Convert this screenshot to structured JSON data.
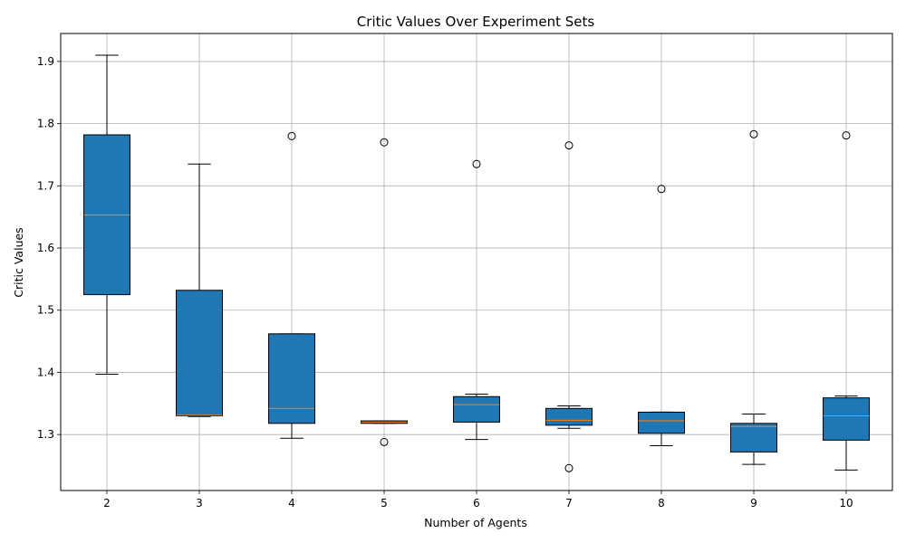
{
  "chart_data": {
    "type": "boxplot",
    "title": "Critic Values Over Experiment Sets",
    "xlabel": "Number of Agents",
    "ylabel": "Critic Values",
    "ylim": [
      1.21,
      1.945
    ],
    "yticks": [
      1.3,
      1.4,
      1.5,
      1.6,
      1.7,
      1.8,
      1.9
    ],
    "ytick_labels": [
      "1.3",
      "1.4",
      "1.5",
      "1.6",
      "1.7",
      "1.8",
      "1.9"
    ],
    "grid": true,
    "box_color": "#1f77b4",
    "median_color": "#ff7f0e",
    "categories": [
      "2",
      "3",
      "4",
      "5",
      "6",
      "7",
      "8",
      "9",
      "10"
    ],
    "boxes": [
      {
        "whisker_low": 1.397,
        "q1": 1.525,
        "median": 1.653,
        "q3": 1.782,
        "whisker_high": 1.91,
        "outliers": []
      },
      {
        "whisker_low": 1.329,
        "q1": 1.33,
        "median": 1.331,
        "q3": 1.532,
        "whisker_high": 1.735,
        "outliers": []
      },
      {
        "whisker_low": 1.294,
        "q1": 1.318,
        "median": 1.342,
        "q3": 1.462,
        "whisker_high": 1.462,
        "outliers": [
          1.78
        ]
      },
      {
        "whisker_low": 1.318,
        "q1": 1.318,
        "median": 1.32,
        "q3": 1.322,
        "whisker_high": 1.322,
        "outliers": [
          1.288,
          1.77
        ]
      },
      {
        "whisker_low": 1.292,
        "q1": 1.32,
        "median": 1.348,
        "q3": 1.361,
        "whisker_high": 1.365,
        "outliers": [
          1.735
        ]
      },
      {
        "whisker_low": 1.31,
        "q1": 1.315,
        "median": 1.323,
        "q3": 1.342,
        "whisker_high": 1.346,
        "outliers": [
          1.246,
          1.765
        ]
      },
      {
        "whisker_low": 1.282,
        "q1": 1.302,
        "median": 1.322,
        "q3": 1.336,
        "whisker_high": 1.336,
        "outliers": [
          1.695
        ]
      },
      {
        "whisker_low": 1.252,
        "q1": 1.272,
        "median": 1.313,
        "q3": 1.318,
        "whisker_high": 1.333,
        "outliers": [
          1.783
        ]
      },
      {
        "whisker_low": 1.243,
        "q1": 1.291,
        "median": 1.33,
        "q3": 1.359,
        "whisker_high": 1.362,
        "outliers": [
          1.781
        ]
      }
    ]
  }
}
